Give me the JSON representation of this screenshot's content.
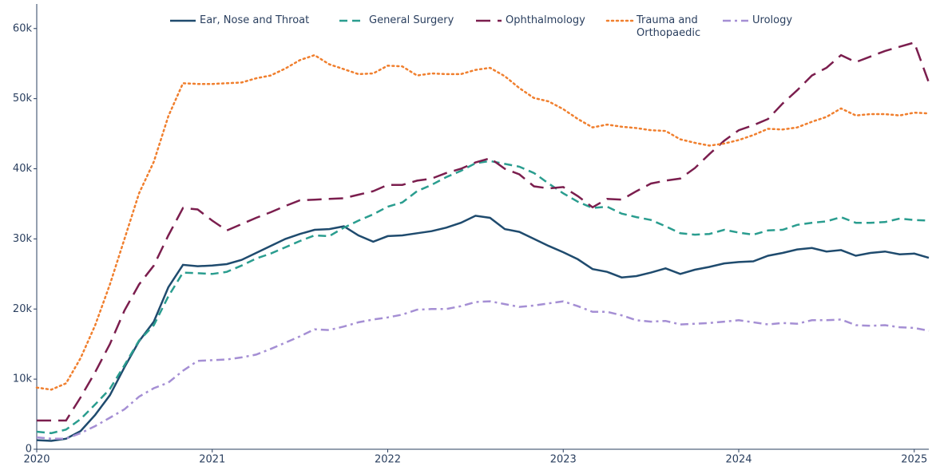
{
  "chart_data": {
    "type": "line",
    "x": [
      2020,
      2020.083,
      2020.167,
      2020.25,
      2020.333,
      2020.417,
      2020.5,
      2020.583,
      2020.667,
      2020.75,
      2020.833,
      2020.917,
      2021,
      2021.083,
      2021.167,
      2021.25,
      2021.333,
      2021.417,
      2021.5,
      2021.583,
      2021.667,
      2021.75,
      2021.833,
      2021.917,
      2022,
      2022.083,
      2022.167,
      2022.25,
      2022.333,
      2022.417,
      2022.5,
      2022.583,
      2022.667,
      2022.75,
      2022.833,
      2022.917,
      2023,
      2023.083,
      2023.167,
      2023.25,
      2023.333,
      2023.417,
      2023.5,
      2023.583,
      2023.667,
      2023.75,
      2023.833,
      2023.917,
      2024,
      2024.083,
      2024.167,
      2024.25,
      2024.333,
      2024.417,
      2024.5,
      2024.583,
      2024.667,
      2024.75,
      2024.833,
      2024.917,
      2025,
      2025.083
    ],
    "series": [
      {
        "name": "Ear, Nose and Throat",
        "color": "#1f4b6e",
        "dash": "solid",
        "values": [
          1300,
          1200,
          1500,
          2600,
          4900,
          7700,
          11700,
          15400,
          18200,
          23100,
          26300,
          26100,
          26200,
          26400,
          27000,
          28000,
          29000,
          30000,
          30700,
          31300,
          31400,
          31800,
          30500,
          29600,
          30400,
          30500,
          30800,
          31100,
          31600,
          32300,
          33300,
          33000,
          31400,
          31000,
          30000,
          29000,
          28100,
          27100,
          25700,
          25300,
          24500,
          24700,
          25200,
          25800,
          25000,
          25600,
          26000,
          26500,
          26700,
          26800,
          27600,
          28000,
          28500,
          28700,
          28200,
          28400,
          27600,
          28000,
          28200,
          27800,
          27900,
          27300
        ]
      },
      {
        "name": "General Surgery",
        "color": "#2a9d8f",
        "dash": "dash",
        "values": [
          2500,
          2300,
          2800,
          4300,
          6400,
          8600,
          12000,
          15500,
          17700,
          21800,
          25200,
          25100,
          25000,
          25300,
          26200,
          27200,
          27900,
          28800,
          29700,
          30500,
          30400,
          31600,
          32600,
          33500,
          34600,
          35200,
          36800,
          37700,
          38800,
          39700,
          40800,
          41100,
          40700,
          40300,
          39400,
          37900,
          36500,
          35300,
          34400,
          34600,
          33600,
          33100,
          32700,
          31800,
          30800,
          30600,
          30700,
          31300,
          30900,
          30600,
          31200,
          31300,
          32000,
          32300,
          32500,
          33100,
          32300,
          32300,
          32400,
          32900,
          32700,
          32600
        ]
      },
      {
        "name": "Ophthalmology",
        "color": "#7b1e4e",
        "dash": "longdash",
        "values": [
          4100,
          4100,
          4100,
          7400,
          11000,
          15000,
          19800,
          23500,
          26200,
          30500,
          34400,
          34200,
          32600,
          31200,
          32100,
          33000,
          33800,
          34700,
          35500,
          35600,
          35700,
          35800,
          36300,
          36800,
          37700,
          37700,
          38300,
          38600,
          39400,
          40000,
          40900,
          41500,
          40000,
          39200,
          37500,
          37200,
          37400,
          36100,
          34500,
          35700,
          35600,
          36800,
          37900,
          38300,
          38600,
          40100,
          42100,
          44000,
          45500,
          46200,
          47100,
          49300,
          51200,
          53300,
          54400,
          56200,
          55200,
          56000,
          56800,
          57400,
          58000,
          52300
        ]
      },
      {
        "name": "Trauma and Orthopaedic",
        "color": "#f07f2e",
        "dash": "dot",
        "values": [
          8800,
          8500,
          9400,
          13000,
          17700,
          23500,
          30000,
          36500,
          41000,
          47500,
          52200,
          52100,
          52100,
          52200,
          52300,
          52900,
          53300,
          54300,
          55500,
          56200,
          54900,
          54200,
          53500,
          53600,
          54700,
          54600,
          53300,
          53600,
          53500,
          53500,
          54100,
          54400,
          53200,
          51500,
          50100,
          49600,
          48500,
          47100,
          45900,
          46300,
          46000,
          45800,
          45500,
          45400,
          44200,
          43700,
          43300,
          43600,
          44100,
          44800,
          45700,
          45600,
          45900,
          46700,
          47400,
          48600,
          47600,
          47800,
          47800,
          47600,
          48000,
          47900
        ]
      },
      {
        "name": "Urology",
        "color": "#a58fd4",
        "dash": "dashdot",
        "values": [
          1700,
          1500,
          1500,
          2300,
          3300,
          4500,
          5700,
          7500,
          8700,
          9500,
          11200,
          12600,
          12700,
          12800,
          13100,
          13500,
          14300,
          15200,
          16100,
          17100,
          17000,
          17500,
          18100,
          18500,
          18800,
          19200,
          19900,
          20000,
          20000,
          20400,
          21000,
          21100,
          20700,
          20300,
          20500,
          20800,
          21100,
          20400,
          19600,
          19600,
          19100,
          18400,
          18200,
          18300,
          17800,
          17900,
          18000,
          18200,
          18400,
          18100,
          17800,
          18000,
          17900,
          18400,
          18400,
          18500,
          17700,
          17600,
          17700,
          17400,
          17300,
          16900
        ]
      }
    ],
    "xlim": [
      2020,
      2025.083
    ],
    "xticks": [
      2020,
      2021,
      2022,
      2023,
      2024,
      2025
    ],
    "ylim": [
      0,
      63500
    ],
    "yticks": [
      0,
      {
        "value": 10000,
        "label": "10k"
      },
      {
        "value": 20000,
        "label": "20k"
      },
      {
        "value": 30000,
        "label": "30k"
      },
      {
        "value": 40000,
        "label": "40k"
      },
      {
        "value": 50000,
        "label": "50k"
      },
      {
        "value": 60000,
        "label": "60k"
      }
    ],
    "grid": false,
    "legend": "top"
  }
}
